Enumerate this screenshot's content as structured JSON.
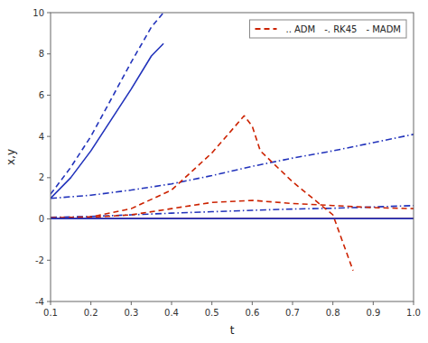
{
  "chart_data": {
    "type": "line",
    "title": "",
    "xlabel": "t",
    "ylabel": "x,y",
    "xlim": [
      0.1,
      1.0
    ],
    "ylim": [
      -4,
      10
    ],
    "xticks": [
      0.1,
      0.2,
      0.3,
      0.4,
      0.5,
      0.6,
      0.7,
      0.8,
      0.9,
      {
        "value": 1.0,
        "label": "1.0"
      }
    ],
    "yticks": [
      -4,
      -2,
      0,
      2,
      4,
      6,
      8,
      10
    ],
    "grid": false,
    "legend": "upper right",
    "legend_entries": [
      {
        "color": "#cc2200",
        "line_style": "dashed"
      },
      {
        "label": ".. ADM"
      },
      {
        "label": "-. RK45"
      },
      {
        "label": "- MADM"
      }
    ],
    "series": [
      {
        "color": "#2233bb",
        "line_style": "dashed",
        "x": [
          0.1,
          0.15,
          0.2,
          0.25,
          0.3,
          0.35,
          0.38
        ],
        "values": [
          1.2,
          2.5,
          4.0,
          5.8,
          7.6,
          9.3,
          10.0
        ]
      },
      {
        "color": "#2233bb",
        "line_style": "solid",
        "x": [
          0.1,
          0.15,
          0.2,
          0.25,
          0.3,
          0.35,
          0.38
        ],
        "values": [
          1.0,
          2.0,
          3.3,
          4.8,
          6.3,
          7.9,
          8.5
        ]
      },
      {
        "color": "#2233bb",
        "line_style": "dashdot",
        "x": [
          0.1,
          0.2,
          0.3,
          0.4,
          0.5,
          0.6,
          0.7,
          0.8,
          0.9,
          1.0
        ],
        "values": [
          1.0,
          1.15,
          1.4,
          1.7,
          2.1,
          2.55,
          2.95,
          3.3,
          3.7,
          4.1
        ]
      },
      {
        "color": "#2233bb",
        "line_style": "dashdot",
        "x": [
          0.1,
          0.2,
          0.3,
          0.4,
          0.5,
          0.6,
          0.7,
          0.8,
          0.9,
          1.0
        ],
        "values": [
          0.08,
          0.12,
          0.2,
          0.28,
          0.35,
          0.42,
          0.48,
          0.52,
          0.58,
          0.65
        ]
      },
      {
        "color": "#cc2200",
        "line_style": "dashed",
        "x": [
          0.1,
          0.2,
          0.3,
          0.4,
          0.5,
          0.58,
          0.6,
          0.62,
          0.7,
          0.75,
          0.8,
          0.85
        ],
        "values": [
          0.05,
          0.1,
          0.5,
          1.4,
          3.2,
          5.0,
          4.5,
          3.3,
          1.8,
          1.0,
          0.2,
          -2.5
        ]
      },
      {
        "color": "#cc2200",
        "line_style": "dashed",
        "x": [
          0.1,
          0.2,
          0.3,
          0.4,
          0.5,
          0.6,
          0.7,
          0.8,
          0.9,
          1.0
        ],
        "values": [
          0.05,
          0.08,
          0.2,
          0.5,
          0.8,
          0.9,
          0.75,
          0.65,
          0.55,
          0.5
        ]
      },
      {
        "color": "#cc2200",
        "line_style": "solid",
        "x": [
          0.1,
          0.2,
          0.3,
          0.4,
          0.5,
          0.6,
          0.7,
          0.8,
          0.9,
          1.0
        ],
        "values": [
          0.02,
          0.02,
          0.02,
          0.02,
          0.02,
          0.02,
          0.02,
          0.02,
          0.02,
          0.02
        ]
      },
      {
        "color": "#2233bb",
        "line_style": "solid",
        "x": [
          0.1,
          0.2,
          0.3,
          0.4,
          0.5,
          0.6,
          0.7,
          0.8,
          0.9,
          1.0
        ],
        "values": [
          0.02,
          0.02,
          0.02,
          0.02,
          0.02,
          0.02,
          0.02,
          0.02,
          0.02,
          0.02
        ]
      }
    ]
  }
}
